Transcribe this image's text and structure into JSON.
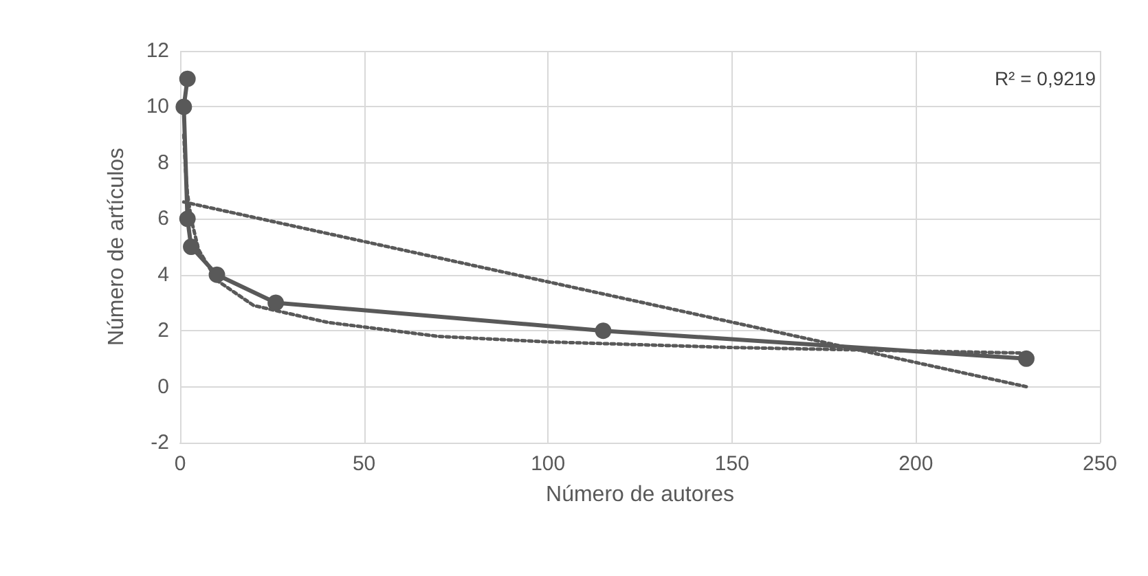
{
  "chart_data": {
    "type": "line",
    "xlabel": "Número de autores",
    "ylabel": "Número de artículos",
    "annotations": [
      "R² = 0,9219"
    ],
    "xlim": [
      0,
      250
    ],
    "xticks": [
      0,
      50,
      100,
      150,
      200,
      250
    ],
    "ylim": [
      -2,
      12
    ],
    "yticks": [
      -2,
      0,
      2,
      4,
      6,
      8,
      10,
      12
    ],
    "grid": true,
    "series": [
      {
        "color": "#595959",
        "marker": "circle",
        "line_style": "solid",
        "x": [
          2,
          1,
          2,
          3,
          10,
          26,
          115,
          230
        ],
        "values": [
          11,
          10,
          6,
          5,
          4,
          3,
          2,
          1
        ]
      },
      {
        "type": "line",
        "color": "#595959",
        "marker": "none",
        "line_style": "dotted",
        "x": [
          1,
          230
        ],
        "values": [
          6.6,
          0
        ]
      },
      {
        "type": "line",
        "color": "#595959",
        "marker": "none",
        "line_style": "dotted",
        "x": [
          1,
          1.5,
          2,
          3,
          5,
          10,
          20,
          40,
          70,
          100,
          150,
          230
        ],
        "values": [
          9,
          7.7,
          6.9,
          6,
          4.9,
          3.8,
          2.9,
          2.3,
          1.8,
          1.6,
          1.4,
          1.2
        ]
      }
    ]
  }
}
